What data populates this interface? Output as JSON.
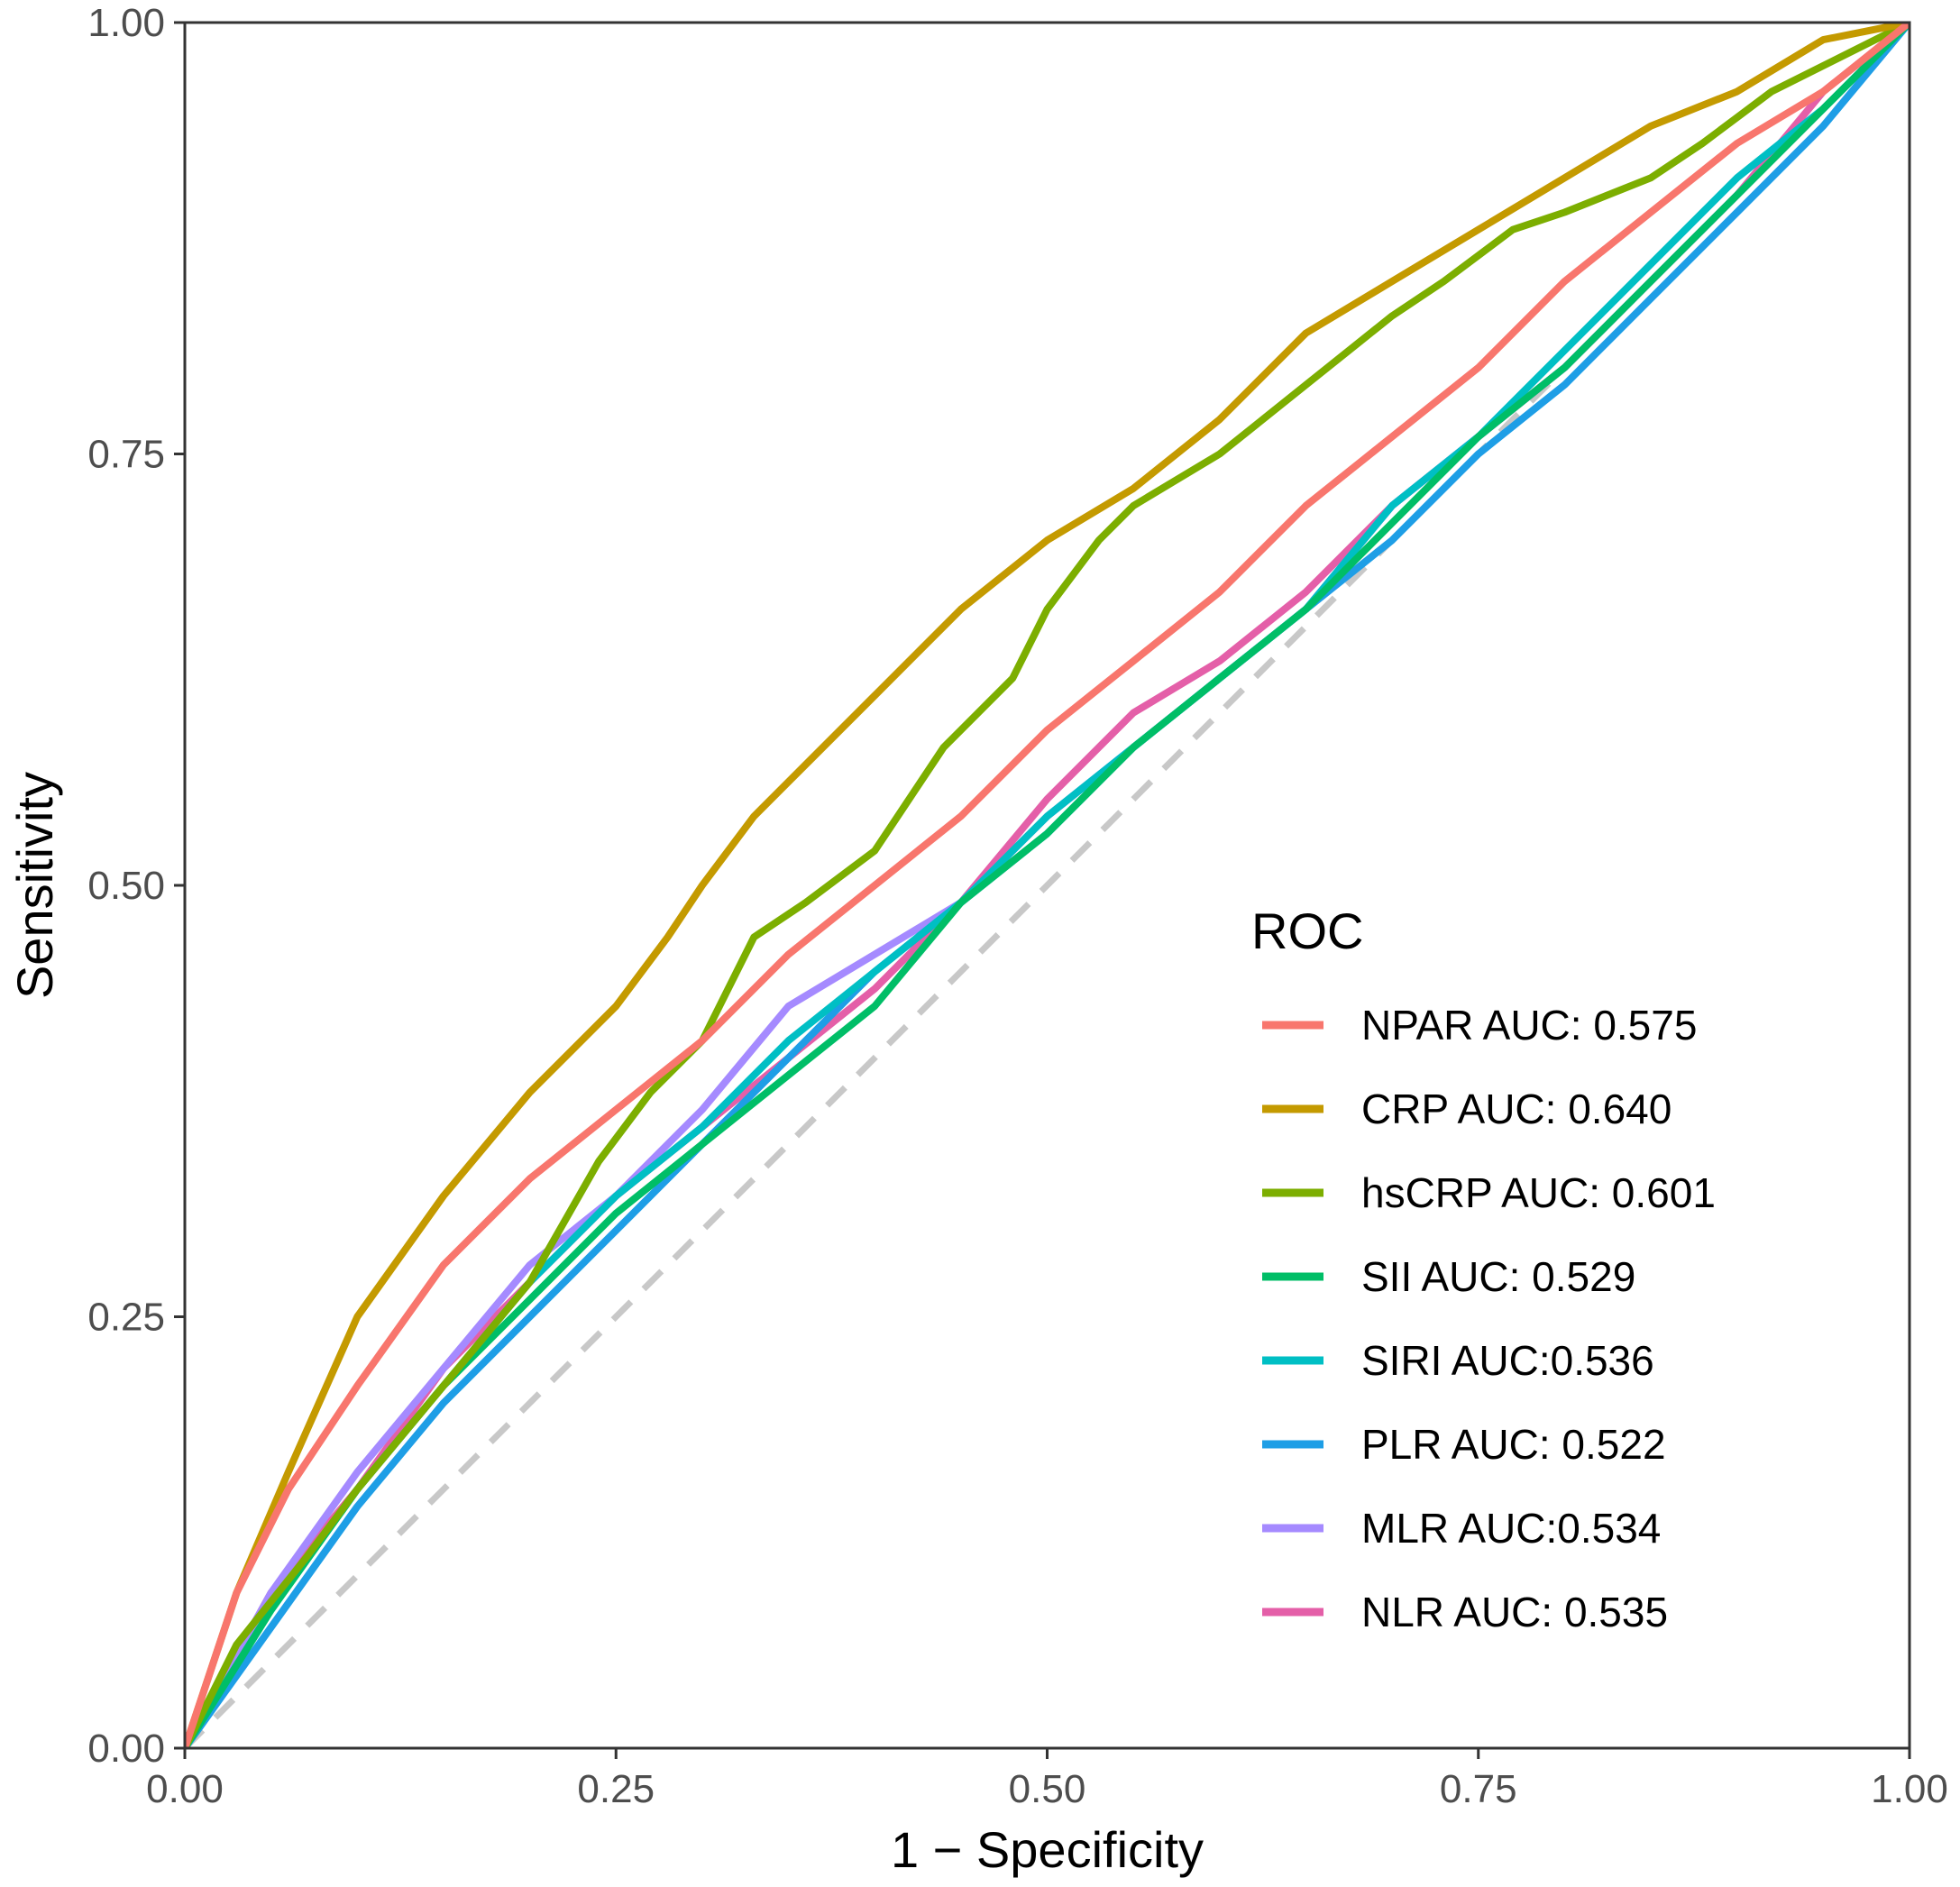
{
  "chart_data": {
    "type": "line",
    "title": "",
    "xlabel": "1 − Specificity",
    "ylabel": "Sensitivity",
    "xlim": [
      0,
      1
    ],
    "ylim": [
      0,
      1
    ],
    "x_ticks": [
      "0.00",
      "0.25",
      "0.50",
      "0.75",
      "1.00"
    ],
    "y_ticks": [
      "0.00",
      "0.25",
      "0.50",
      "0.75",
      "1.00"
    ],
    "grid": false,
    "legend": {
      "title": "ROC",
      "position": "right-center-inside"
    },
    "reference_line": {
      "name": "chance-diagonal",
      "x": [
        0,
        1
      ],
      "y": [
        0,
        1
      ],
      "style": "dashed",
      "color": "#c8c8c8"
    },
    "series": [
      {
        "name": "NPAR",
        "label": "NPAR AUC: 0.575",
        "auc": 0.575,
        "color": "#F8766D",
        "x": [
          0,
          0.03,
          0.06,
          0.1,
          0.15,
          0.2,
          0.25,
          0.3,
          0.35,
          0.4,
          0.45,
          0.5,
          0.55,
          0.6,
          0.65,
          0.7,
          0.75,
          0.8,
          0.85,
          0.9,
          0.95,
          1.0
        ],
        "y": [
          0,
          0.09,
          0.15,
          0.21,
          0.28,
          0.33,
          0.37,
          0.41,
          0.46,
          0.5,
          0.54,
          0.59,
          0.63,
          0.67,
          0.72,
          0.76,
          0.8,
          0.85,
          0.89,
          0.93,
          0.96,
          1.0
        ]
      },
      {
        "name": "CRP",
        "label": "CRP AUC: 0.640",
        "auc": 0.64,
        "color": "#C49A00",
        "x": [
          0,
          0.03,
          0.06,
          0.1,
          0.15,
          0.2,
          0.25,
          0.28,
          0.3,
          0.33,
          0.35,
          0.4,
          0.45,
          0.5,
          0.55,
          0.6,
          0.65,
          0.7,
          0.75,
          0.8,
          0.85,
          0.9,
          0.95,
          1.0
        ],
        "y": [
          0,
          0.09,
          0.16,
          0.25,
          0.32,
          0.38,
          0.43,
          0.47,
          0.5,
          0.54,
          0.56,
          0.61,
          0.66,
          0.7,
          0.73,
          0.77,
          0.82,
          0.85,
          0.88,
          0.91,
          0.94,
          0.96,
          0.99,
          1.0
        ]
      },
      {
        "name": "hsCRP",
        "label": "hsCRP AUC: 0.601",
        "auc": 0.601,
        "color": "#7CAE00",
        "x": [
          0,
          0.03,
          0.07,
          0.1,
          0.15,
          0.2,
          0.24,
          0.27,
          0.3,
          0.33,
          0.36,
          0.4,
          0.44,
          0.46,
          0.48,
          0.5,
          0.53,
          0.55,
          0.6,
          0.65,
          0.7,
          0.73,
          0.77,
          0.8,
          0.85,
          0.88,
          0.92,
          0.96,
          1.0
        ],
        "y": [
          0,
          0.06,
          0.11,
          0.15,
          0.21,
          0.27,
          0.34,
          0.38,
          0.41,
          0.47,
          0.49,
          0.52,
          0.58,
          0.6,
          0.62,
          0.66,
          0.7,
          0.72,
          0.75,
          0.79,
          0.83,
          0.85,
          0.88,
          0.89,
          0.91,
          0.93,
          0.96,
          0.98,
          1.0
        ]
      },
      {
        "name": "SII",
        "label": "SII AUC: 0.529",
        "auc": 0.529,
        "color": "#00BE67",
        "x": [
          0,
          0.05,
          0.1,
          0.15,
          0.2,
          0.25,
          0.3,
          0.35,
          0.4,
          0.45,
          0.5,
          0.55,
          0.6,
          0.65,
          0.7,
          0.75,
          0.8,
          0.85,
          0.9,
          0.95,
          1.0
        ],
        "y": [
          0,
          0.08,
          0.15,
          0.21,
          0.26,
          0.31,
          0.35,
          0.39,
          0.43,
          0.49,
          0.53,
          0.58,
          0.62,
          0.66,
          0.71,
          0.76,
          0.8,
          0.85,
          0.9,
          0.95,
          1.0
        ]
      },
      {
        "name": "SIRI",
        "label": "SIRI AUC:0.536",
        "auc": 0.536,
        "color": "#00BFC4",
        "x": [
          0,
          0.05,
          0.1,
          0.15,
          0.2,
          0.25,
          0.3,
          0.35,
          0.4,
          0.45,
          0.5,
          0.55,
          0.6,
          0.65,
          0.7,
          0.75,
          0.8,
          0.85,
          0.9,
          0.95,
          1.0
        ],
        "y": [
          0,
          0.08,
          0.15,
          0.21,
          0.27,
          0.32,
          0.36,
          0.41,
          0.45,
          0.49,
          0.54,
          0.58,
          0.62,
          0.66,
          0.72,
          0.76,
          0.81,
          0.86,
          0.91,
          0.95,
          1.0
        ]
      },
      {
        "name": "PLR",
        "label": "PLR AUC: 0.522",
        "auc": 0.522,
        "color": "#1E9EE6",
        "x": [
          0,
          0.05,
          0.1,
          0.15,
          0.2,
          0.25,
          0.3,
          0.35,
          0.4,
          0.45,
          0.5,
          0.55,
          0.6,
          0.65,
          0.7,
          0.75,
          0.8,
          0.85,
          0.9,
          0.95,
          1.0
        ],
        "y": [
          0,
          0.07,
          0.14,
          0.2,
          0.25,
          0.3,
          0.35,
          0.4,
          0.45,
          0.49,
          0.53,
          0.58,
          0.62,
          0.66,
          0.7,
          0.75,
          0.79,
          0.84,
          0.89,
          0.94,
          1.0
        ]
      },
      {
        "name": "MLR",
        "label": "MLR AUC:0.534",
        "auc": 0.534,
        "color": "#A58AFF",
        "x": [
          0,
          0.05,
          0.1,
          0.15,
          0.2,
          0.25,
          0.3,
          0.35,
          0.4,
          0.45,
          0.5,
          0.55,
          0.6,
          0.65,
          0.7,
          0.75,
          0.8,
          0.85,
          0.9,
          0.95,
          1.0
        ],
        "y": [
          0,
          0.09,
          0.16,
          0.22,
          0.28,
          0.32,
          0.37,
          0.43,
          0.46,
          0.49,
          0.54,
          0.58,
          0.62,
          0.66,
          0.72,
          0.76,
          0.8,
          0.85,
          0.9,
          0.95,
          1.0
        ]
      },
      {
        "name": "NLR",
        "label": "NLR AUC: 0.535",
        "auc": 0.535,
        "color": "#E45FA8",
        "x": [
          0,
          0.05,
          0.1,
          0.15,
          0.2,
          0.25,
          0.3,
          0.35,
          0.4,
          0.45,
          0.5,
          0.55,
          0.6,
          0.65,
          0.7,
          0.75,
          0.8,
          0.85,
          0.9,
          0.95,
          1.0
        ],
        "y": [
          0,
          0.09,
          0.15,
          0.22,
          0.27,
          0.32,
          0.36,
          0.4,
          0.44,
          0.49,
          0.55,
          0.6,
          0.63,
          0.67,
          0.72,
          0.76,
          0.8,
          0.85,
          0.9,
          0.96,
          1.0
        ]
      }
    ]
  }
}
